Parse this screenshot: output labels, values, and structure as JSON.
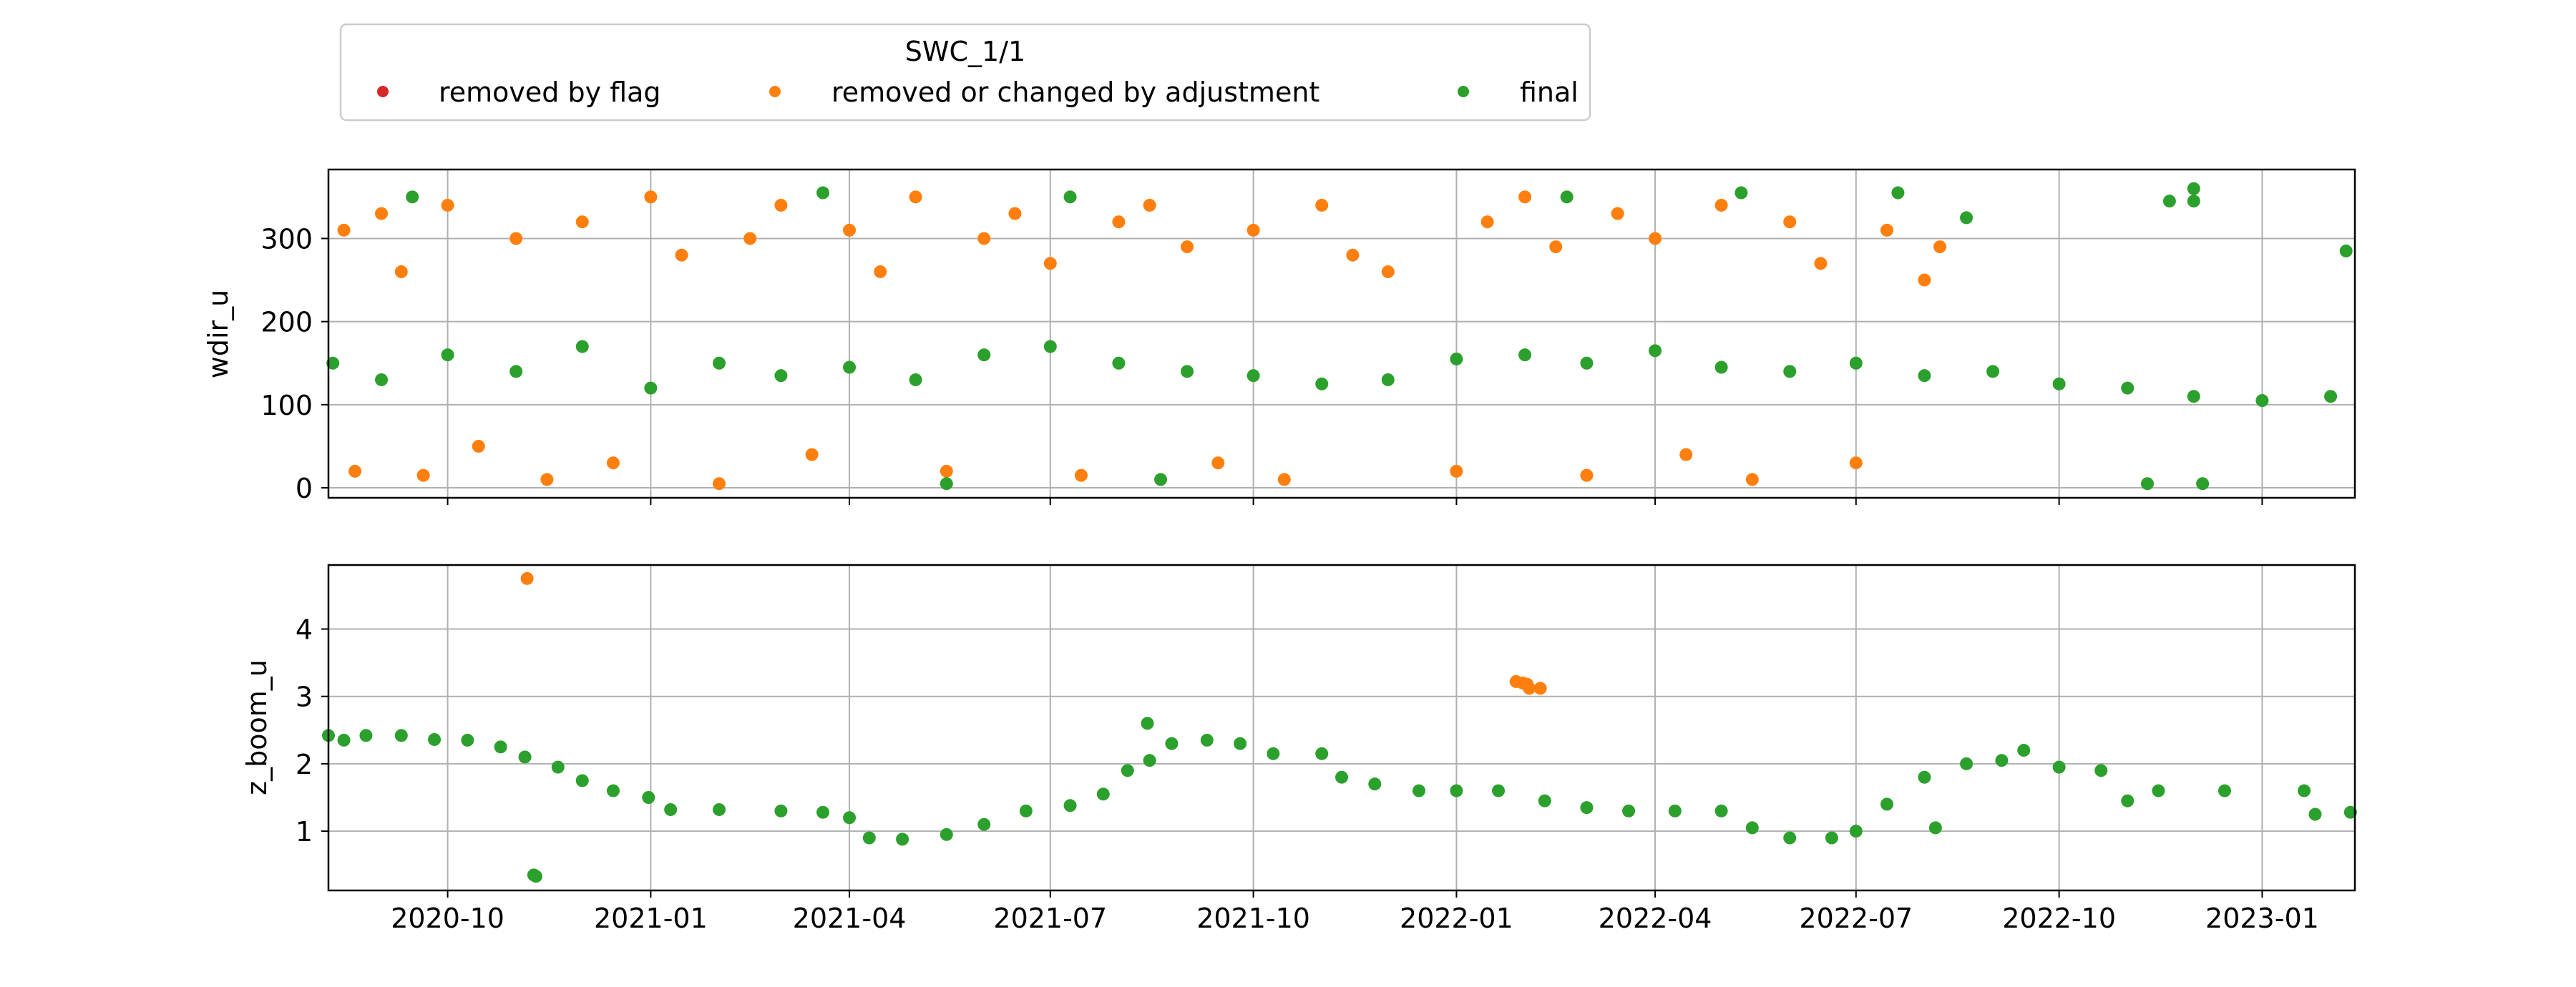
{
  "legend": {
    "title": "SWC_1/1",
    "entries": [
      {
        "label": "removed by flag",
        "color": "#d62728"
      },
      {
        "label": "removed or changed by adjustment",
        "color": "#ff7f0e"
      },
      {
        "label": "final",
        "color": "#2ca02c"
      }
    ],
    "placement": "above plots, upper-left"
  },
  "chart_data": [
    {
      "type": "scatter",
      "ylabel": "wdir_u",
      "xlabel": "",
      "xlim": [
        "2020-08-08",
        "2023-02-12"
      ],
      "ylim": [
        -12,
        383
      ],
      "yticks": [
        0,
        100,
        200,
        300
      ],
      "grid": true,
      "show_xtick_labels": false,
      "series": [
        {
          "name": "removed or changed by adjustment",
          "color": "#ff7f0e",
          "points": [
            [
              "2020-08-15",
              310
            ],
            [
              "2020-08-20",
              20
            ],
            [
              "2020-09-01",
              330
            ],
            [
              "2020-09-10",
              260
            ],
            [
              "2020-09-20",
              15
            ],
            [
              "2020-10-01",
              340
            ],
            [
              "2020-10-15",
              50
            ],
            [
              "2020-11-01",
              300
            ],
            [
              "2020-11-15",
              10
            ],
            [
              "2020-12-01",
              320
            ],
            [
              "2020-12-15",
              30
            ],
            [
              "2021-01-01",
              350
            ],
            [
              "2021-01-15",
              280
            ],
            [
              "2021-02-01",
              5
            ],
            [
              "2021-02-15",
              300
            ],
            [
              "2021-03-01",
              340
            ],
            [
              "2021-03-15",
              40
            ],
            [
              "2021-04-01",
              310
            ],
            [
              "2021-04-15",
              260
            ],
            [
              "2021-05-01",
              350
            ],
            [
              "2021-05-15",
              20
            ],
            [
              "2021-06-01",
              300
            ],
            [
              "2021-06-15",
              330
            ],
            [
              "2021-07-01",
              270
            ],
            [
              "2021-07-15",
              15
            ],
            [
              "2021-08-01",
              320
            ],
            [
              "2021-08-15",
              340
            ],
            [
              "2021-09-01",
              290
            ],
            [
              "2021-09-15",
              30
            ],
            [
              "2021-10-01",
              310
            ],
            [
              "2021-10-15",
              10
            ],
            [
              "2021-11-01",
              340
            ],
            [
              "2021-11-15",
              280
            ],
            [
              "2021-12-01",
              260
            ],
            [
              "2022-01-01",
              20
            ],
            [
              "2022-01-15",
              320
            ],
            [
              "2022-02-01",
              350
            ],
            [
              "2022-02-15",
              290
            ],
            [
              "2022-03-01",
              15
            ],
            [
              "2022-03-15",
              330
            ],
            [
              "2022-04-01",
              300
            ],
            [
              "2022-04-15",
              40
            ],
            [
              "2022-05-01",
              340
            ],
            [
              "2022-05-15",
              10
            ],
            [
              "2022-06-01",
              320
            ],
            [
              "2022-06-15",
              270
            ],
            [
              "2022-07-01",
              30
            ],
            [
              "2022-07-15",
              310
            ],
            [
              "2022-08-01",
              250
            ],
            [
              "2022-08-08",
              290
            ]
          ]
        },
        {
          "name": "final",
          "color": "#2ca02c",
          "points": [
            [
              "2020-08-10",
              150
            ],
            [
              "2020-09-01",
              130
            ],
            [
              "2020-10-01",
              160
            ],
            [
              "2020-11-01",
              140
            ],
            [
              "2020-12-01",
              170
            ],
            [
              "2021-01-01",
              120
            ],
            [
              "2021-02-01",
              150
            ],
            [
              "2021-03-01",
              135
            ],
            [
              "2021-04-01",
              145
            ],
            [
              "2021-05-01",
              130
            ],
            [
              "2021-06-01",
              160
            ],
            [
              "2021-07-01",
              170
            ],
            [
              "2021-08-01",
              150
            ],
            [
              "2021-09-01",
              140
            ],
            [
              "2021-10-01",
              135
            ],
            [
              "2021-11-01",
              125
            ],
            [
              "2021-12-01",
              130
            ],
            [
              "2022-01-01",
              155
            ],
            [
              "2022-02-01",
              160
            ],
            [
              "2022-03-01",
              150
            ],
            [
              "2022-04-01",
              165
            ],
            [
              "2022-05-01",
              145
            ],
            [
              "2022-06-01",
              140
            ],
            [
              "2022-07-01",
              150
            ],
            [
              "2022-08-01",
              135
            ],
            [
              "2022-09-01",
              140
            ],
            [
              "2022-10-01",
              125
            ],
            [
              "2022-11-01",
              120
            ],
            [
              "2022-12-01",
              110
            ],
            [
              "2023-01-01",
              105
            ],
            [
              "2023-02-01",
              110
            ],
            [
              "2020-09-15",
              350
            ],
            [
              "2021-03-20",
              355
            ],
            [
              "2021-07-10",
              350
            ],
            [
              "2022-02-20",
              350
            ],
            [
              "2022-05-10",
              355
            ],
            [
              "2022-07-20",
              355
            ],
            [
              "2022-11-20",
              345
            ],
            [
              "2022-12-01",
              360
            ],
            [
              "2022-12-01",
              345
            ],
            [
              "2022-08-20",
              325
            ],
            [
              "2023-02-08",
              285
            ],
            [
              "2021-05-15",
              5
            ],
            [
              "2021-08-20",
              10
            ],
            [
              "2022-11-10",
              5
            ],
            [
              "2022-12-05",
              5
            ]
          ]
        }
      ]
    },
    {
      "type": "scatter",
      "ylabel": "z_boom_u",
      "xlabel": "",
      "xlim": [
        "2020-08-08",
        "2023-02-12"
      ],
      "ylim": [
        0.12,
        4.95
      ],
      "yticks": [
        1,
        2,
        3,
        4
      ],
      "xticks": [
        "2020-10",
        "2021-01",
        "2021-04",
        "2021-07",
        "2021-10",
        "2022-01",
        "2022-04",
        "2022-07",
        "2022-10",
        "2023-01"
      ],
      "grid": true,
      "series": [
        {
          "name": "removed or changed by adjustment",
          "color": "#ff7f0e",
          "points": [
            [
              "2020-11-06",
              4.75
            ],
            [
              "2022-01-28",
              3.22
            ],
            [
              "2022-01-31",
              3.2
            ],
            [
              "2022-02-02",
              3.18
            ],
            [
              "2022-02-03",
              3.12
            ],
            [
              "2022-02-08",
              3.12
            ]
          ]
        },
        {
          "name": "final",
          "color": "#2ca02c",
          "points": [
            [
              "2020-08-08",
              2.42
            ],
            [
              "2020-08-15",
              2.35
            ],
            [
              "2020-08-25",
              2.42
            ],
            [
              "2020-09-10",
              2.42
            ],
            [
              "2020-09-25",
              2.36
            ],
            [
              "2020-10-10",
              2.35
            ],
            [
              "2020-10-25",
              2.25
            ],
            [
              "2020-11-05",
              2.1
            ],
            [
              "2020-11-20",
              1.95
            ],
            [
              "2020-12-01",
              1.75
            ],
            [
              "2020-12-15",
              1.6
            ],
            [
              "2020-12-31",
              1.5
            ],
            [
              "2021-01-10",
              1.32
            ],
            [
              "2021-02-01",
              1.32
            ],
            [
              "2021-03-01",
              1.3
            ],
            [
              "2021-03-20",
              1.28
            ],
            [
              "2021-04-01",
              1.2
            ],
            [
              "2021-04-10",
              0.9
            ],
            [
              "2021-04-25",
              0.88
            ],
            [
              "2021-05-15",
              0.95
            ],
            [
              "2021-06-01",
              1.1
            ],
            [
              "2021-06-20",
              1.3
            ],
            [
              "2021-07-10",
              1.38
            ],
            [
              "2021-07-25",
              1.55
            ],
            [
              "2021-08-05",
              1.9
            ],
            [
              "2021-08-15",
              2.05
            ],
            [
              "2021-08-25",
              2.3
            ],
            [
              "2021-09-10",
              2.35
            ],
            [
              "2021-09-25",
              2.3
            ],
            [
              "2021-10-10",
              2.15
            ],
            [
              "2021-11-01",
              2.15
            ],
            [
              "2021-11-10",
              1.8
            ],
            [
              "2021-11-25",
              1.7
            ],
            [
              "2021-12-15",
              1.6
            ],
            [
              "2022-01-01",
              1.6
            ],
            [
              "2022-01-20",
              1.6
            ],
            [
              "2022-02-10",
              1.45
            ],
            [
              "2022-03-01",
              1.35
            ],
            [
              "2022-03-20",
              1.3
            ],
            [
              "2022-04-10",
              1.3
            ],
            [
              "2022-05-01",
              1.3
            ],
            [
              "2022-05-15",
              1.05
            ],
            [
              "2022-06-01",
              0.9
            ],
            [
              "2022-06-20",
              0.9
            ],
            [
              "2022-07-01",
              1.0
            ],
            [
              "2022-07-15",
              1.4
            ],
            [
              "2022-08-01",
              1.8
            ],
            [
              "2022-08-20",
              2.0
            ],
            [
              "2022-09-05",
              2.05
            ],
            [
              "2022-09-15",
              2.2
            ],
            [
              "2022-10-01",
              1.95
            ],
            [
              "2022-10-20",
              1.9
            ],
            [
              "2022-11-01",
              1.45
            ],
            [
              "2022-11-15",
              1.6
            ],
            [
              "2022-12-15",
              1.6
            ],
            [
              "2023-01-20",
              1.6
            ],
            [
              "2023-01-25",
              1.25
            ],
            [
              "2023-02-10",
              1.28
            ],
            [
              "2020-11-09",
              0.35
            ],
            [
              "2020-11-10",
              0.33
            ],
            [
              "2021-08-14",
              2.6
            ],
            [
              "2022-08-06",
              1.05
            ]
          ]
        }
      ]
    }
  ]
}
